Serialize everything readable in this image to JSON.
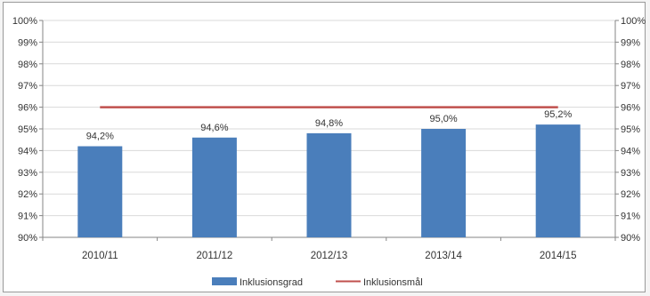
{
  "chart_data": {
    "type": "bar",
    "categories": [
      "2010/11",
      "2011/12",
      "2012/13",
      "2013/14",
      "2014/15"
    ],
    "series": [
      {
        "name": "Inklusionsgrad",
        "type": "bar",
        "values": [
          94.2,
          94.6,
          94.8,
          95.0,
          95.2
        ],
        "color": "#4a7ebb"
      },
      {
        "name": "Inklusionsmål",
        "type": "line",
        "values": [
          96,
          96,
          96,
          96,
          96
        ],
        "color": "#c0504d"
      }
    ],
    "data_labels": [
      "94,2%",
      "94,6%",
      "94,8%",
      "95,0%",
      "95,2%"
    ],
    "y_ticks": [
      "90%",
      "91%",
      "92%",
      "93%",
      "94%",
      "95%",
      "96%",
      "97%",
      "98%",
      "99%",
      "100%"
    ],
    "ylim": [
      90,
      100
    ],
    "secondary_axis": true,
    "grid": true,
    "legend_position": "bottom",
    "title": "",
    "xlabel": "",
    "ylabel": ""
  }
}
